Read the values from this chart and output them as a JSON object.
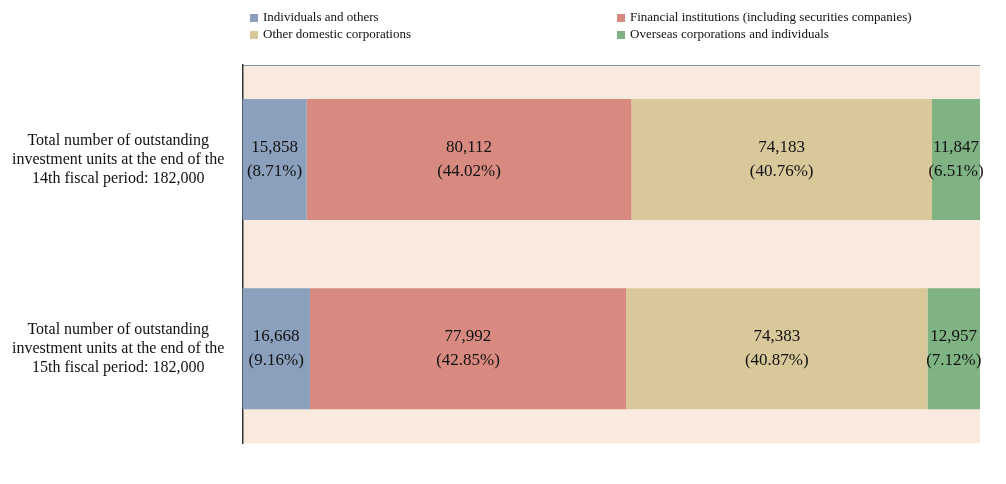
{
  "chart_data": {
    "type": "bar",
    "orientation": "horizontal",
    "stacked": true,
    "categories": [
      "Total number of outstanding investment units at the end of the 14th fiscal period: 182,000",
      "Total number of outstanding investment units at the end of the 15th fiscal period: 182,000"
    ],
    "xlim": [
      0,
      100
    ],
    "legend": "top",
    "series": [
      {
        "name": "Individuals and others",
        "color": "#8aa0bd",
        "values": [
          8.71,
          9.16
        ],
        "value_labels": [
          "15,858\n(8.71%)",
          "16,668\n(9.16%)"
        ]
      },
      {
        "name": "Financial institutions (including securities companies)",
        "color": "#d98a80",
        "values": [
          44.02,
          42.85
        ],
        "value_labels": [
          "80,112\n(44.02%)",
          "77,992\n(42.85%)"
        ]
      },
      {
        "name": "Other domestic corporations",
        "color": "#d8c89a",
        "values": [
          40.76,
          40.87
        ],
        "value_labels": [
          "74,183\n(40.76%)",
          "74,383\n(40.87%)"
        ]
      },
      {
        "name": "Overseas corporations and individuals",
        "color": "#7fb384",
        "values": [
          6.51,
          7.12
        ],
        "value_labels": [
          "11,847\n(6.51%)",
          "12,957\n(7.12%)"
        ]
      }
    ]
  }
}
